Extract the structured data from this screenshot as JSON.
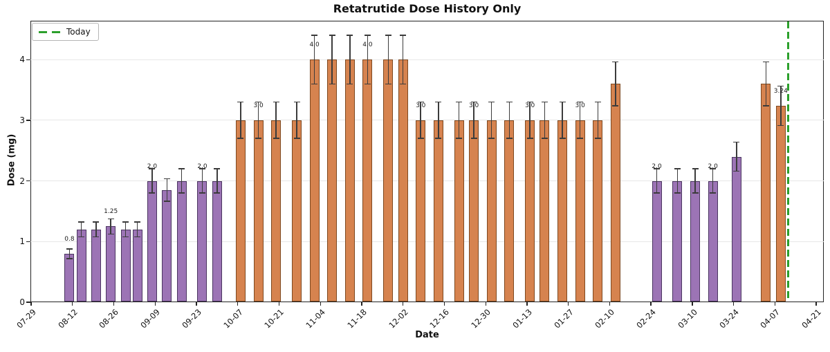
{
  "figure": {
    "title": "Retatrutide Dose History Only",
    "xlabel": "Date",
    "ylabel": "Dose (mg)",
    "legend": {
      "label": "Today"
    }
  },
  "colors": {
    "purple_fill": "#9c74b5",
    "purple_edge": "#4a3560",
    "orange_fill": "#d6834f",
    "orange_edge": "#7d481f",
    "today_line": "#2ca02c",
    "error_bar": "#3b3b3b",
    "gridline": "#e7e7e7",
    "spine": "#222222"
  },
  "chart_data": {
    "type": "bar",
    "title": "Retatrutide Dose History Only",
    "xlabel": "Date",
    "ylabel": "Dose (mg)",
    "ylim": [
      0,
      4.64
    ],
    "y_ticks": [
      0,
      1,
      2,
      3,
      4
    ],
    "grid": "horizontal",
    "legend_position": "upper left",
    "x_tick_labels": [
      "07-29",
      "08-12",
      "08-26",
      "09-09",
      "09-23",
      "10-07",
      "10-21",
      "11-04",
      "11-18",
      "12-02",
      "12-16",
      "12-30",
      "01-13",
      "01-27",
      "02-10",
      "02-24",
      "03-10",
      "03-24",
      "04-07",
      "04-21"
    ],
    "x_tick_interval_days": 14,
    "error_bars_pct": 10,
    "today_marker": {
      "label": "Today",
      "day": 256.6,
      "approx_date": "04-11"
    },
    "bars": [
      {
        "date": "08-11",
        "day": 13,
        "value": 0.8,
        "color": "purple",
        "label": "0.8"
      },
      {
        "date": "08-15",
        "day": 17,
        "value": 1.2,
        "color": "purple"
      },
      {
        "date": "08-20",
        "day": 22,
        "value": 1.2,
        "color": "purple"
      },
      {
        "date": "08-25",
        "day": 27,
        "value": 1.25,
        "color": "purple",
        "label": "1.25"
      },
      {
        "date": "08-30",
        "day": 32,
        "value": 1.2,
        "color": "purple"
      },
      {
        "date": "09-03",
        "day": 36,
        "value": 1.2,
        "color": "purple"
      },
      {
        "date": "09-08",
        "day": 41,
        "value": 2.0,
        "color": "purple",
        "label": "2.0"
      },
      {
        "date": "09-13",
        "day": 46,
        "value": 1.85,
        "color": "purple"
      },
      {
        "date": "09-18",
        "day": 51,
        "value": 2.0,
        "color": "purple"
      },
      {
        "date": "09-25",
        "day": 58,
        "value": 2.0,
        "color": "purple",
        "label": "2.0"
      },
      {
        "date": "09-30",
        "day": 63,
        "value": 2.0,
        "color": "purple"
      },
      {
        "date": "10-08",
        "day": 71,
        "value": 3.0,
        "color": "orange"
      },
      {
        "date": "10-14",
        "day": 77,
        "value": 3.0,
        "color": "orange",
        "label": "3.0"
      },
      {
        "date": "10-20",
        "day": 83,
        "value": 3.0,
        "color": "orange"
      },
      {
        "date": "10-27",
        "day": 90,
        "value": 3.0,
        "color": "orange"
      },
      {
        "date": "11-02",
        "day": 96,
        "value": 4.0,
        "color": "orange",
        "label": "4.0"
      },
      {
        "date": "11-08",
        "day": 102,
        "value": 4.0,
        "color": "orange"
      },
      {
        "date": "11-14",
        "day": 108,
        "value": 4.0,
        "color": "orange"
      },
      {
        "date": "11-20",
        "day": 114,
        "value": 4.0,
        "color": "orange",
        "label": "4.0"
      },
      {
        "date": "11-27",
        "day": 121,
        "value": 4.0,
        "color": "orange"
      },
      {
        "date": "12-02",
        "day": 126,
        "value": 4.0,
        "color": "orange"
      },
      {
        "date": "12-08",
        "day": 132,
        "value": 3.0,
        "color": "orange",
        "label": "3.0"
      },
      {
        "date": "12-14",
        "day": 138,
        "value": 3.0,
        "color": "orange"
      },
      {
        "date": "12-21",
        "day": 145,
        "value": 3.0,
        "color": "orange"
      },
      {
        "date": "12-26",
        "day": 150,
        "value": 3.0,
        "color": "orange",
        "label": "3.0"
      },
      {
        "date": "01-01",
        "day": 156,
        "value": 3.0,
        "color": "orange"
      },
      {
        "date": "01-07",
        "day": 162,
        "value": 3.0,
        "color": "orange"
      },
      {
        "date": "01-14",
        "day": 169,
        "value": 3.0,
        "color": "orange",
        "label": "3.0"
      },
      {
        "date": "01-19",
        "day": 174,
        "value": 3.0,
        "color": "orange"
      },
      {
        "date": "01-25",
        "day": 180,
        "value": 3.0,
        "color": "orange"
      },
      {
        "date": "01-31",
        "day": 186,
        "value": 3.0,
        "color": "orange",
        "label": "3.0"
      },
      {
        "date": "02-06",
        "day": 192,
        "value": 3.0,
        "color": "orange"
      },
      {
        "date": "02-12",
        "day": 198,
        "value": 3.6,
        "color": "orange"
      },
      {
        "date": "02-26",
        "day": 212,
        "value": 2.0,
        "color": "purple",
        "label": "2.0"
      },
      {
        "date": "03-05",
        "day": 219,
        "value": 2.0,
        "color": "purple"
      },
      {
        "date": "03-11",
        "day": 225,
        "value": 2.0,
        "color": "purple"
      },
      {
        "date": "03-17",
        "day": 231,
        "value": 2.0,
        "color": "purple",
        "label": "2.0"
      },
      {
        "date": "03-25",
        "day": 239,
        "value": 2.4,
        "color": "purple"
      },
      {
        "date": "04-04",
        "day": 249,
        "value": 3.6,
        "color": "orange"
      },
      {
        "date": "04-09",
        "day": 254,
        "value": 3.24,
        "color": "orange",
        "label": "3.24"
      }
    ]
  }
}
